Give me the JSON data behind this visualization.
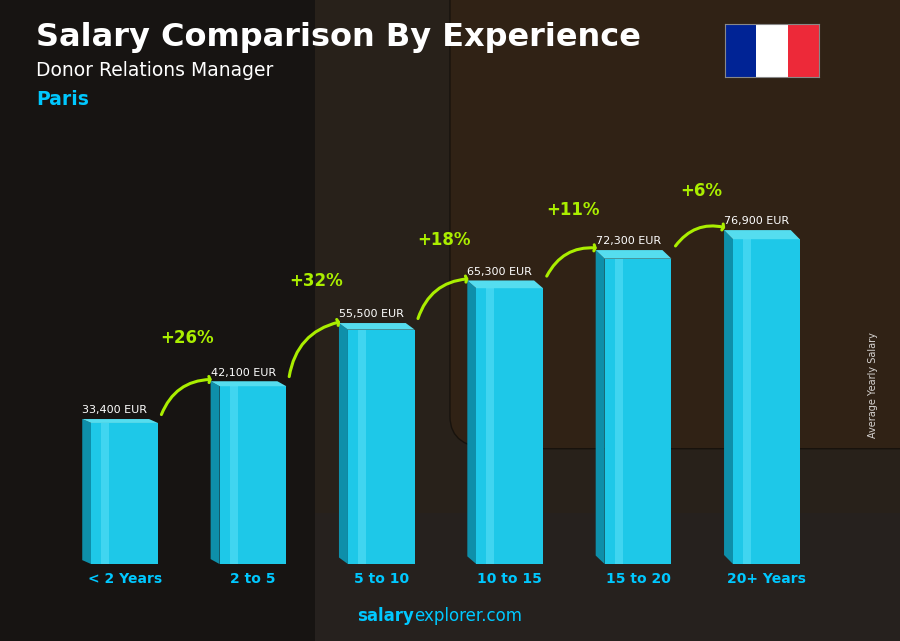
{
  "title": "Salary Comparison By Experience",
  "subtitle": "Donor Relations Manager",
  "city": "Paris",
  "ylabel": "Average Yearly Salary",
  "watermark_bold": "salary",
  "watermark_regular": "explorer.com",
  "categories": [
    "< 2 Years",
    "2 to 5",
    "5 to 10",
    "10 to 15",
    "15 to 20",
    "20+ Years"
  ],
  "values": [
    33400,
    42100,
    55500,
    65300,
    72300,
    76900
  ],
  "value_labels": [
    "33,400 EUR",
    "42,100 EUR",
    "55,500 EUR",
    "65,300 EUR",
    "72,300 EUR",
    "76,900 EUR"
  ],
  "pct_labels": [
    "+26%",
    "+32%",
    "+18%",
    "+11%",
    "+6%"
  ],
  "bar_face_color": "#1EC8E8",
  "bar_left_color": "#0E8FAA",
  "bar_top_color": "#55DDEF",
  "bar_highlight_color": "#80EEFF",
  "title_color": "#FFFFFF",
  "subtitle_color": "#FFFFFF",
  "city_color": "#00C8FF",
  "value_color": "#FFFFFF",
  "pct_color": "#AAEE00",
  "arrow_color": "#AAEE00",
  "xticklabel_color": "#00C8FF",
  "watermark_color": "#00C8FF",
  "flag_colors": [
    "#002395",
    "#FFFFFF",
    "#ED2939"
  ],
  "bg_dark": "#1a1a22",
  "bg_mid": "#2a2a35",
  "max_val": 88000,
  "ylim": [
    0,
    88000
  ]
}
